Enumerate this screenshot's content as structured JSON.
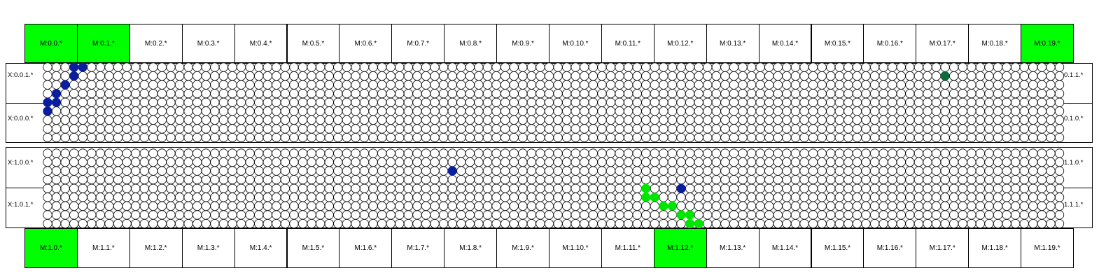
{
  "top_modules": {
    "labels": [
      "M:0.0.*",
      "M:0.1.*",
      "M:0.2.*",
      "M:0.3.*",
      "M:0.4.*",
      "M:0.5.*",
      "M:0.6.*",
      "M:0.7.*",
      "M:0.8.*",
      "M:0.9.*",
      "M:0.10.*",
      "M:0.11.*",
      "M:0.12.*",
      "M:0.13.*",
      "M:0.14.*",
      "M:0.15.*",
      "M:0.16.*",
      "M:0.17.*",
      "M:0.18.*",
      "M:0.19.*"
    ],
    "highlighted": [
      0,
      1,
      19
    ]
  },
  "bottom_modules": {
    "labels": [
      "M:1.0.*",
      "M:1.1.*",
      "M:1.2.*",
      "M:1.3.*",
      "M:1.4.*",
      "M:1.5.*",
      "M:1.6.*",
      "M:1.7.*",
      "M:1.8.*",
      "M:1.9.*",
      "M:1.10.*",
      "M:1.11.*",
      "M:1.12.*",
      "M:1.13.*",
      "M:1.14.*",
      "M:1.15.*",
      "M:1.16.*",
      "M:1.17.*",
      "M:1.18.*",
      "M:1.19.*"
    ],
    "highlighted": [
      0,
      12
    ]
  },
  "top_panel": {
    "left_labels": [
      "X:0.0.1.*",
      "X:0.0.0.*"
    ],
    "right_labels": [
      "X:0.1.1.*",
      "X:0.1.0.*"
    ]
  },
  "bottom_panel": {
    "left_labels": [
      "X:1.0.0.*",
      "X:1.0.1.*"
    ],
    "right_labels": [
      "X:1.1.0.*",
      "X:1.1.1.*"
    ]
  },
  "colors": {
    "highlight": "#00ff00",
    "blue": "#0a1e9e",
    "green": "#00e600",
    "teal": "#0b6b3a",
    "empty": "#ffffff"
  },
  "grid": {
    "columns": 116,
    "rows": 9
  },
  "marks": {
    "top": [
      {
        "col": 3,
        "row": 0,
        "color": "blue"
      },
      {
        "col": 4,
        "row": 0,
        "color": "blue"
      },
      {
        "col": 3,
        "row": 1,
        "color": "blue"
      },
      {
        "col": 2,
        "row": 2,
        "color": "blue"
      },
      {
        "col": 1,
        "row": 3,
        "color": "blue"
      },
      {
        "col": 0,
        "row": 4,
        "color": "blue"
      },
      {
        "col": 1,
        "row": 4,
        "color": "blue"
      },
      {
        "col": 0,
        "row": 5,
        "color": "blue"
      },
      {
        "col": 102,
        "row": 1,
        "color": "teal"
      }
    ],
    "bottom": [
      {
        "col": 46,
        "row": 2,
        "color": "blue"
      },
      {
        "col": 68,
        "row": 4,
        "color": "green"
      },
      {
        "col": 68,
        "row": 5,
        "color": "green"
      },
      {
        "col": 69,
        "row": 5,
        "color": "green"
      },
      {
        "col": 70,
        "row": 6,
        "color": "green"
      },
      {
        "col": 71,
        "row": 6,
        "color": "green"
      },
      {
        "col": 72,
        "row": 7,
        "color": "green"
      },
      {
        "col": 73,
        "row": 7,
        "color": "green"
      },
      {
        "col": 73,
        "row": 8,
        "color": "green"
      },
      {
        "col": 74,
        "row": 8,
        "color": "green"
      },
      {
        "col": 68,
        "row": 4,
        "color": "green"
      },
      {
        "col": 68,
        "row": 4,
        "color": "green"
      },
      {
        "col": 68,
        "row": 4,
        "color": "green"
      },
      {
        "col": 72,
        "row": 4,
        "color": "blue"
      }
    ]
  }
}
